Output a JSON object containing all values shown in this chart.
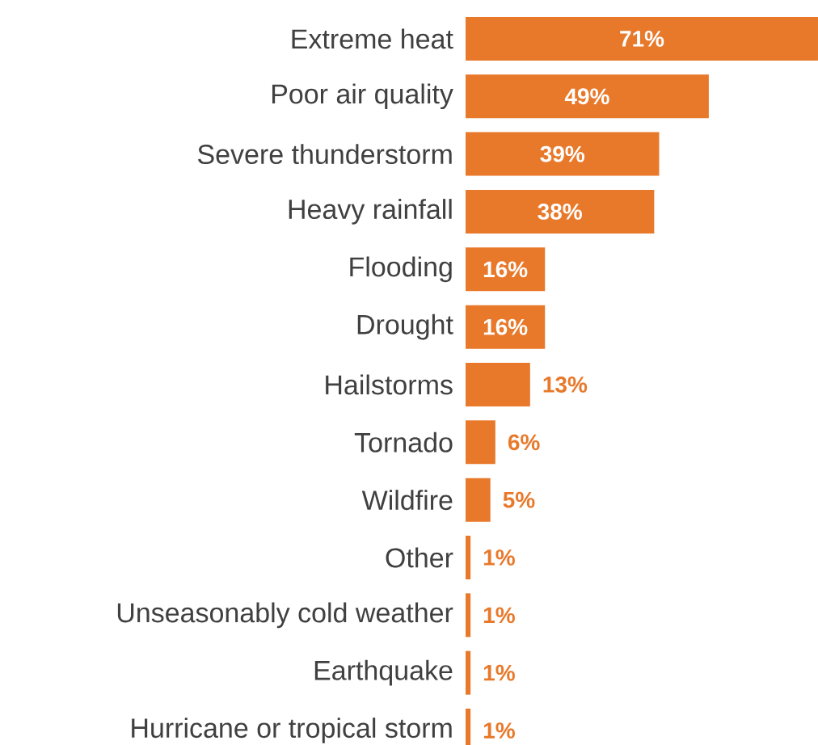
{
  "chart_data": {
    "type": "bar",
    "orientation": "horizontal",
    "categories": [
      "Extreme heat",
      "Poor air quality",
      "Severe thunderstorm",
      "Heavy rainfall",
      "Flooding",
      "Drought",
      "Hailstorms",
      "Tornado",
      "Wildfire",
      "Other",
      "Unseasonably cold weather",
      "Earthquake",
      "Hurricane or tropical storm"
    ],
    "values": [
      71,
      49,
      39,
      38,
      16,
      16,
      13,
      6,
      5,
      1,
      1,
      1,
      1
    ],
    "value_labels": [
      "71%",
      "49%",
      "39%",
      "38%",
      "16%",
      "16%",
      "13%",
      "6%",
      "5%",
      "1%",
      "1%",
      "1%",
      "1%"
    ],
    "color": "#e8792b",
    "xlim": [
      0,
      71
    ],
    "tick_labels": "y"
  }
}
